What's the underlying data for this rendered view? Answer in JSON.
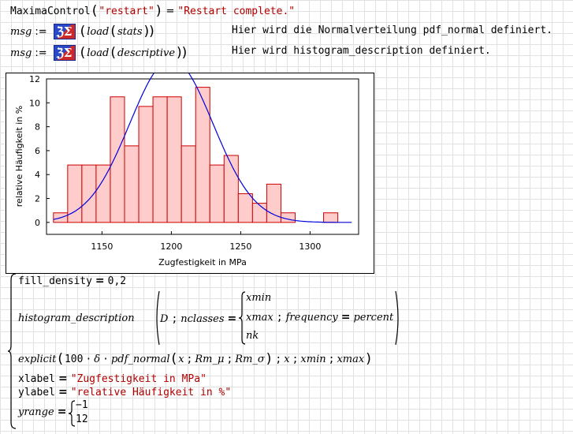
{
  "line1": {
    "func": "MaximaControl",
    "arg": "\"restart\"",
    "eq": "=",
    "result": "\"Restart complete.\""
  },
  "line2": {
    "var": "msg",
    "assign": ":=",
    "fn": "load",
    "arg": "stats",
    "comment": "Hier wird die Normalverteilung pdf_normal definiert."
  },
  "line3": {
    "var": "msg",
    "assign": ":=",
    "fn": "load",
    "arg": "descriptive",
    "comment": "Hier wird histogram_description definiert."
  },
  "logo_text": "ℨΣ",
  "plot": {
    "colors": {
      "bar_fill": "#ffcccc",
      "bar_stroke": "#cc0000",
      "curve": "#0000dd"
    },
    "yticks": [
      "12",
      "10",
      "8",
      "6",
      "4",
      "2",
      "0"
    ],
    "xticks": [
      "1150",
      "1200",
      "1250",
      "1300"
    ],
    "xlabel": "Zugfestigkeit in MPa",
    "ylabel": "relative Häufigkeit in %"
  },
  "chart_data": {
    "type": "bar",
    "title": "",
    "xlabel": "Zugfestigkeit in MPa",
    "ylabel": "relative Häufigkeit in %",
    "xlim": [
      1110,
      1335
    ],
    "ylim": [
      -1,
      12
    ],
    "bin_width": 10.25,
    "bin_starts": [
      1115,
      1125.25,
      1135.5,
      1145.75,
      1156,
      1166.25,
      1176.5,
      1186.75,
      1197,
      1207.25,
      1217.5,
      1227.75,
      1238,
      1248.25,
      1258.5,
      1268.75,
      1279,
      1289.25,
      1299.5,
      1309.75,
      1320
    ],
    "values": [
      0.8,
      4.8,
      4.8,
      4.8,
      10.5,
      6.4,
      9.7,
      10.5,
      10.5,
      6.4,
      11.3,
      4.8,
      5.6,
      2.4,
      1.6,
      3.2,
      0.8,
      0,
      0,
      0.8,
      0
    ],
    "series": [
      {
        "type": "histogram"
      },
      {
        "type": "line",
        "kind": "normal pdf",
        "mu": 1200,
        "sigma": 30,
        "scale": 10.25
      }
    ],
    "grid": false
  },
  "def": {
    "fill_label": "fill_density",
    "fill_value": "0,2",
    "hist_fn": "histogram_description",
    "hist_D": "D",
    "nclasses_label": "nclasses",
    "matrix": [
      "x",
      "x",
      "n"
    ],
    "matrix_subs": [
      "min",
      "max",
      "k"
    ],
    "freq_label": "frequency",
    "freq_value": "percent",
    "explicit_fn": "explicit",
    "explicit_num": "100",
    "delta": "δ",
    "pdf": "pdf_normal",
    "x": "x",
    "R": "R",
    "R_mu_sub": "m_μ",
    "R_sigma_sub": "m_σ",
    "xmin_sub": "min",
    "xmax_sub": "max",
    "xlabel_key": "xlabel",
    "xlabel_val": "\"Zugfestigkeit in MPa\"",
    "ylabel_key": "ylabel",
    "ylabel_val": "\"relative Häufigkeit in %\"",
    "yrange_key": "yrange",
    "yrange_vals": [
      "−1",
      "12"
    ]
  }
}
